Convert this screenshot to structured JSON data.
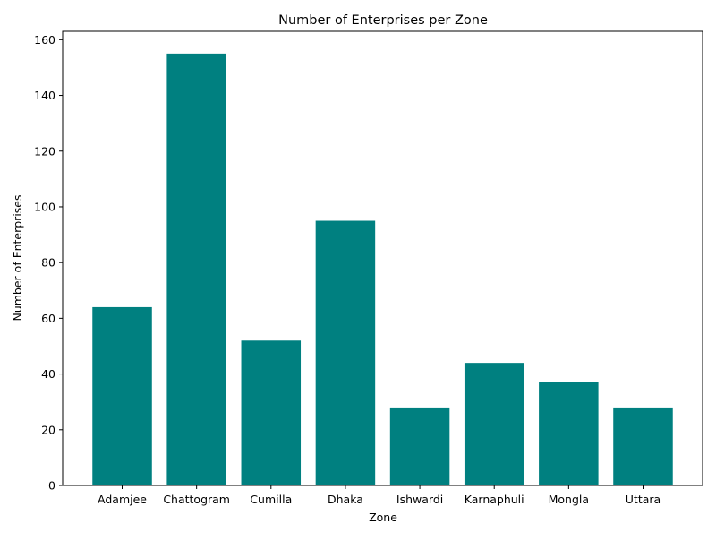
{
  "chart_data": {
    "type": "bar",
    "title": "Number of Enterprises per Zone",
    "xlabel": "Zone",
    "ylabel": "Number of Enterprises",
    "categories": [
      "Adamjee",
      "Chattogram",
      "Cumilla",
      "Dhaka",
      "Ishwardi",
      "Karnaphuli",
      "Mongla",
      "Uttara"
    ],
    "values": [
      64,
      155,
      52,
      95,
      28,
      44,
      37,
      28
    ],
    "ylim": [
      0,
      163
    ],
    "yticks": [
      0,
      20,
      40,
      60,
      80,
      100,
      120,
      140,
      160
    ],
    "grid": false,
    "bar_color": "#008080"
  }
}
